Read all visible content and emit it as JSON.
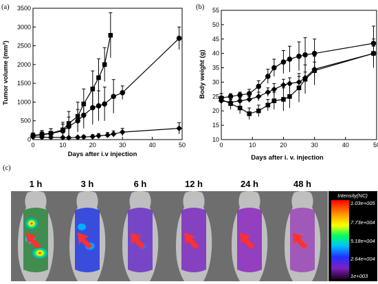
{
  "chart_data": [
    {
      "type": "line",
      "panel_label": "(a)",
      "xlabel": "Days after i.v injection",
      "ylabel": "Tumor volume (mm³)",
      "xlim": [
        0,
        50
      ],
      "ylim": [
        0,
        3500
      ],
      "xticks": [
        "0",
        "10",
        "20",
        "30",
        "40",
        "50"
      ],
      "yticks": [
        "0",
        "500",
        "1000",
        "1500",
        "2000",
        "2500",
        "3000",
        "3500"
      ],
      "grid": false,
      "series": [
        {
          "marker": "square",
          "x": [
            0,
            3,
            6,
            10,
            12,
            15,
            17,
            20,
            22,
            24,
            26
          ],
          "y": [
            110,
            140,
            170,
            260,
            430,
            620,
            950,
            1350,
            1650,
            2000,
            2780
          ],
          "err": [
            70,
            100,
            120,
            200,
            320,
            380,
            400,
            480,
            500,
            450,
            600
          ]
        },
        {
          "marker": "circle",
          "x": [
            0,
            3,
            6,
            10,
            12,
            15,
            17,
            20,
            22,
            24,
            27,
            30,
            49
          ],
          "y": [
            100,
            130,
            160,
            230,
            350,
            500,
            650,
            850,
            900,
            950,
            1150,
            1250,
            2700
          ],
          "err": [
            60,
            90,
            130,
            180,
            250,
            300,
            350,
            450,
            400,
            450,
            450,
            180,
            300
          ]
        },
        {
          "marker": "diamond",
          "x": [
            0,
            3,
            6,
            10,
            12,
            15,
            17,
            20,
            22,
            25,
            27,
            30,
            49
          ],
          "y": [
            70,
            65,
            60,
            55,
            50,
            60,
            70,
            80,
            100,
            120,
            150,
            200,
            300
          ],
          "err": [
            40,
            40,
            30,
            30,
            30,
            30,
            40,
            50,
            60,
            70,
            80,
            100,
            150
          ]
        }
      ]
    },
    {
      "type": "line",
      "panel_label": "(b)",
      "xlabel": "Days after i. v. injection",
      "ylabel": "Body weight (g)",
      "xlim": [
        0,
        50
      ],
      "ylim": [
        10,
        55
      ],
      "xticks": [
        "0",
        "10",
        "20",
        "30",
        "40",
        "50"
      ],
      "yticks": [
        "10",
        "15",
        "20",
        "25",
        "30",
        "35",
        "40",
        "45",
        "50",
        "55"
      ],
      "grid": false,
      "series": [
        {
          "marker": "circle",
          "x": [
            0,
            3,
            6,
            9,
            12,
            15,
            17,
            20,
            22,
            25,
            27,
            30,
            49
          ],
          "y": [
            24.5,
            25,
            25.5,
            26,
            28.5,
            32,
            35,
            37,
            38,
            39,
            39.5,
            40,
            43.5
          ],
          "err": [
            1.5,
            1,
            1,
            1.5,
            2,
            2.5,
            3,
            4,
            4.5,
            5,
            6,
            5,
            6
          ]
        },
        {
          "marker": "square",
          "x": [
            0,
            3,
            6,
            9,
            12,
            15,
            17,
            20,
            22,
            25,
            27,
            30,
            49
          ],
          "y": [
            24,
            22.5,
            21,
            19,
            20,
            22,
            23.5,
            24,
            25,
            28,
            31,
            34,
            40
          ],
          "err": [
            2,
            2,
            2,
            2,
            2,
            2,
            3,
            4,
            4,
            5,
            5,
            5,
            5
          ]
        },
        {
          "marker": "diamond",
          "x": [
            0,
            3,
            6,
            9,
            12,
            15,
            17,
            20,
            22,
            25,
            27,
            30,
            49
          ],
          "y": [
            23.5,
            23,
            23.5,
            24,
            25,
            26.5,
            27.5,
            29,
            29.5,
            30,
            31.5,
            34.5,
            40
          ],
          "err": [
            1,
            1,
            1,
            1,
            1.5,
            1.5,
            2,
            2,
            2,
            2,
            2,
            2.5,
            2.5
          ]
        }
      ]
    }
  ],
  "imaging_panel": {
    "panel_label": "(c)",
    "time_points": [
      "1 h",
      "3 h",
      "6 h",
      "12 h",
      "24 h",
      "48 h"
    ],
    "colorbar": {
      "title": "Intensity(NC)",
      "labels": [
        "1.03e+005",
        "7.73e+004",
        "5.18e+004",
        "2.64e+004",
        "1e+003"
      ]
    },
    "colors": {
      "background": "#6e6e6e",
      "mouse_body": "#c8c8c8",
      "arrow": "#ff3030"
    }
  }
}
